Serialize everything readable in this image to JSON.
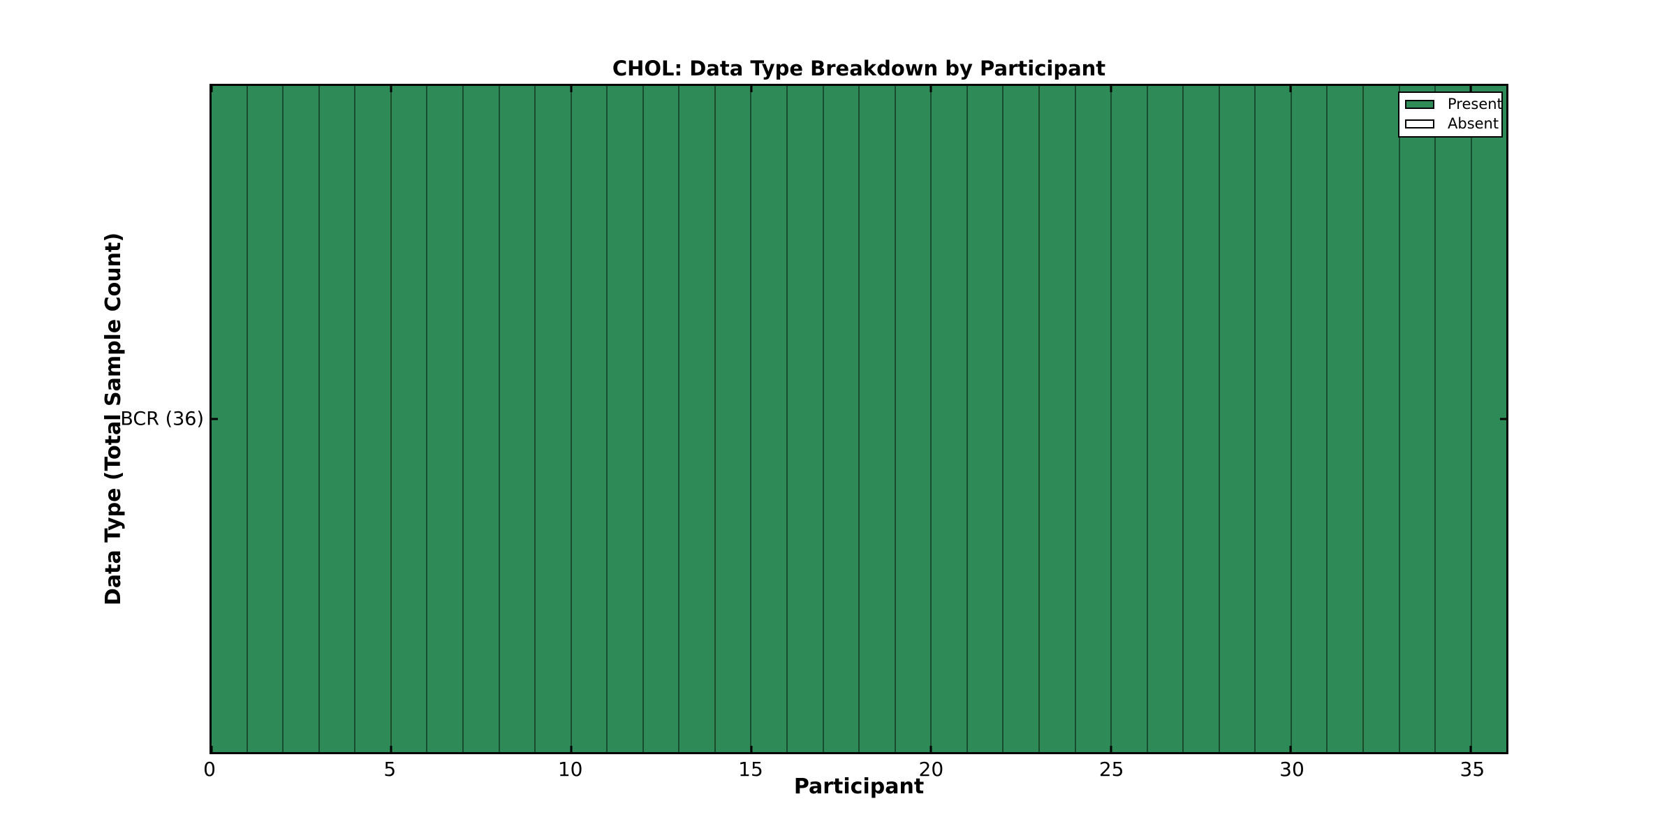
{
  "title": "CHOL: Data Type Breakdown by Participant",
  "colors": {
    "present": "#2E8B57",
    "absent": "#FFFFFF",
    "bar_edge": "rgba(0,0,0,0.45)",
    "axis": "#000000"
  },
  "legend": {
    "items": [
      {
        "label": "Present",
        "color_key": "present"
      },
      {
        "label": "Absent",
        "color_key": "absent"
      }
    ],
    "position": "upper right"
  },
  "chart_data": {
    "type": "bar",
    "title": "CHOL: Data Type Breakdown by Participant",
    "xlabel": "Participant",
    "ylabel": "Data Type (Total Sample Count)",
    "xlim": [
      0,
      36
    ],
    "x_ticks": [
      0,
      5,
      10,
      15,
      20,
      25,
      30,
      35
    ],
    "y_categories": [
      "BCR (36)"
    ],
    "grid": false,
    "legend_position": "upper right",
    "x": [
      0,
      1,
      2,
      3,
      4,
      5,
      6,
      7,
      8,
      9,
      10,
      11,
      12,
      13,
      14,
      15,
      16,
      17,
      18,
      19,
      20,
      21,
      22,
      23,
      24,
      25,
      26,
      27,
      28,
      29,
      30,
      31,
      32,
      33,
      34,
      35
    ],
    "series": [
      {
        "name": "Present",
        "values": [
          1,
          1,
          1,
          1,
          1,
          1,
          1,
          1,
          1,
          1,
          1,
          1,
          1,
          1,
          1,
          1,
          1,
          1,
          1,
          1,
          1,
          1,
          1,
          1,
          1,
          1,
          1,
          1,
          1,
          1,
          1,
          1,
          1,
          1,
          1,
          1
        ]
      },
      {
        "name": "Absent",
        "values": [
          0,
          0,
          0,
          0,
          0,
          0,
          0,
          0,
          0,
          0,
          0,
          0,
          0,
          0,
          0,
          0,
          0,
          0,
          0,
          0,
          0,
          0,
          0,
          0,
          0,
          0,
          0,
          0,
          0,
          0,
          0,
          0,
          0,
          0,
          0,
          0
        ]
      }
    ]
  }
}
